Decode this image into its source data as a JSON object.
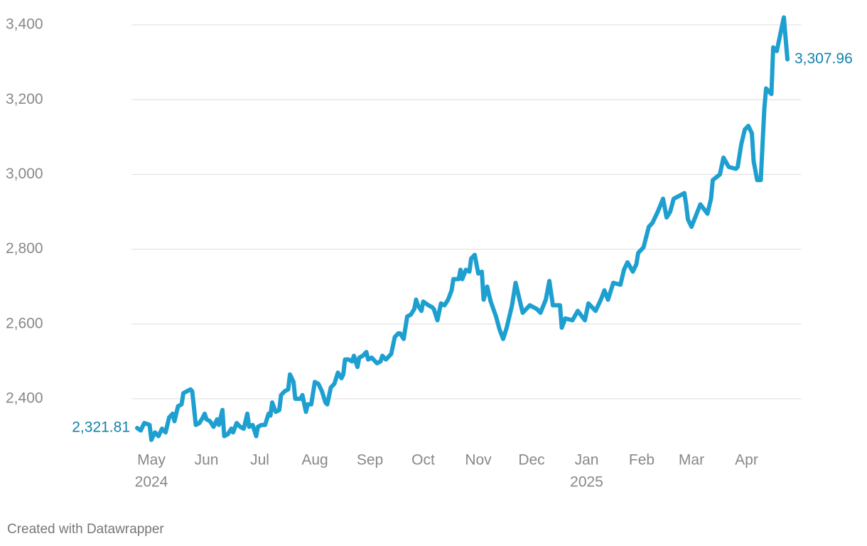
{
  "chart_data": {
    "type": "line",
    "footer": "Created with Datawrapper",
    "x": [
      -8,
      -6,
      -4,
      -2,
      -1,
      0,
      2,
      4,
      6,
      8,
      10,
      12,
      13,
      15,
      17,
      18,
      20,
      22,
      23,
      25,
      27,
      29,
      30,
      31,
      33,
      35,
      37,
      38,
      40,
      41,
      43,
      45,
      46,
      48,
      50,
      52,
      54,
      55,
      57,
      59,
      60,
      62,
      64,
      66,
      67,
      68,
      70,
      72,
      73,
      75,
      77,
      78,
      80,
      81,
      84,
      85,
      87,
      88,
      90,
      92,
      94,
      96,
      98,
      99,
      101,
      103,
      105,
      107,
      108,
      109,
      111,
      113,
      114,
      116,
      117,
      119,
      121,
      122,
      124,
      126,
      127,
      129,
      130,
      132,
      134,
      135,
      137,
      139,
      140,
      142,
      144,
      146,
      148,
      149,
      150,
      152,
      153,
      156,
      158,
      159,
      161,
      163,
      165,
      167,
      169,
      170,
      173,
      174,
      175,
      177,
      179,
      180,
      182,
      184,
      186,
      187,
      189,
      191,
      194,
      196,
      198,
      200,
      203,
      205,
      207,
      209,
      213,
      217,
      219,
      222,
      224,
      226,
      230,
      231,
      233,
      237,
      240,
      244,
      246,
      250,
      253,
      255,
      257,
      260,
      264,
      266,
      268,
      271,
      273,
      274,
      277,
      280,
      282,
      285,
      288,
      290,
      292,
      294,
      298,
      300,
      301,
      302,
      304,
      309,
      313,
      315,
      316,
      320,
      322,
      325,
      329,
      330,
      332,
      334,
      336,
      338,
      339,
      341,
      343,
      345,
      346,
      349,
      350,
      352,
      356,
      358
    ],
    "series": [
      {
        "color": "#1d9fd0",
        "label_color": "#1482a8",
        "values": [
          2321.81,
          2315,
          2335,
          2332,
          2330,
          2290,
          2310,
          2300,
          2320,
          2310,
          2350,
          2360,
          2340,
          2380,
          2385,
          2415,
          2420,
          2425,
          2420,
          2330,
          2335,
          2350,
          2360,
          2345,
          2340,
          2325,
          2345,
          2330,
          2370,
          2300,
          2305,
          2320,
          2310,
          2335,
          2325,
          2320,
          2360,
          2325,
          2330,
          2300,
          2325,
          2330,
          2330,
          2360,
          2355,
          2390,
          2365,
          2370,
          2410,
          2420,
          2425,
          2465,
          2445,
          2400,
          2400,
          2410,
          2365,
          2385,
          2385,
          2445,
          2440,
          2420,
          2390,
          2385,
          2430,
          2440,
          2470,
          2455,
          2465,
          2505,
          2505,
          2500,
          2515,
          2485,
          2510,
          2515,
          2525,
          2505,
          2510,
          2500,
          2495,
          2500,
          2515,
          2505,
          2515,
          2520,
          2565,
          2575,
          2575,
          2560,
          2620,
          2625,
          2640,
          2665,
          2650,
          2635,
          2660,
          2650,
          2645,
          2640,
          2610,
          2655,
          2650,
          2665,
          2690,
          2720,
          2720,
          2745,
          2720,
          2745,
          2740,
          2775,
          2785,
          2735,
          2740,
          2665,
          2700,
          2660,
          2620,
          2585,
          2560,
          2590,
          2650,
          2710,
          2670,
          2630,
          2650,
          2640,
          2630,
          2665,
          2715,
          2650,
          2650,
          2590,
          2615,
          2610,
          2635,
          2610,
          2655,
          2635,
          2665,
          2690,
          2665,
          2710,
          2705,
          2745,
          2765,
          2740,
          2760,
          2790,
          2805,
          2860,
          2870,
          2900,
          2935,
          2885,
          2900,
          2935,
          2945,
          2950,
          2920,
          2880,
          2860,
          2920,
          2895,
          2935,
          2985,
          3000,
          3045,
          3020,
          3015,
          3020,
          3080,
          3120,
          3130,
          3110,
          3035,
          2985,
          2985,
          3175,
          3230,
          3215,
          3340,
          3330,
          3420,
          3307.96
        ],
        "value_labels": [
          "2,321.81",
          null,
          null,
          null,
          null,
          null,
          null,
          null,
          null,
          null,
          null,
          null,
          null,
          null,
          null,
          null,
          null,
          null,
          null,
          null,
          null,
          null,
          null,
          null,
          null,
          null,
          null,
          null,
          null,
          null,
          null,
          null,
          null,
          null,
          null,
          null,
          null,
          null,
          null,
          null,
          null,
          null,
          null,
          null,
          null,
          null,
          null,
          null,
          null,
          null,
          null,
          null,
          null,
          null,
          null,
          null,
          null,
          null,
          null,
          null,
          null,
          null,
          null,
          null,
          null,
          null,
          null,
          null,
          null,
          null,
          null,
          null,
          null,
          null,
          null,
          null,
          null,
          null,
          null,
          null,
          null,
          null,
          null,
          null,
          null,
          null,
          null,
          null,
          null,
          null,
          null,
          null,
          null,
          null,
          null,
          null,
          null,
          null,
          null,
          null,
          null,
          null,
          null,
          null,
          null,
          null,
          null,
          null,
          null,
          null,
          null,
          null,
          null,
          null,
          null,
          null,
          null,
          null,
          null,
          null,
          null,
          null,
          null,
          null,
          null,
          null,
          null,
          null,
          null,
          null,
          null,
          null,
          null,
          null,
          null,
          null,
          null,
          null,
          null,
          null,
          null,
          null,
          null,
          null,
          null,
          null,
          null,
          null,
          null,
          null,
          null,
          null,
          null,
          null,
          null,
          null,
          null,
          null,
          null,
          null,
          null,
          null,
          null,
          null,
          null,
          null,
          null,
          null,
          null,
          null,
          null,
          null,
          null,
          null,
          null,
          null,
          null,
          null,
          null,
          null,
          null,
          null,
          null,
          null,
          null,
          "3,307.96"
        ]
      }
    ],
    "xlim": [
      -11,
      365
    ],
    "xticks": [
      {
        "value": 0,
        "label": "May"
      },
      {
        "value": 31,
        "label": "Jun"
      },
      {
        "value": 61,
        "label": "Jul"
      },
      {
        "value": 92,
        "label": "Aug"
      },
      {
        "value": 123,
        "label": "Sep"
      },
      {
        "value": 153,
        "label": "Oct"
      },
      {
        "value": 184,
        "label": "Nov"
      },
      {
        "value": 214,
        "label": "Dec"
      },
      {
        "value": 245,
        "label": "Jan"
      },
      {
        "value": 276,
        "label": "Feb"
      },
      {
        "value": 304,
        "label": "Mar"
      },
      {
        "value": 335,
        "label": "Apr"
      }
    ],
    "year_labels": [
      {
        "value": 0,
        "label": "2024"
      },
      {
        "value": 245,
        "label": "2025"
      }
    ],
    "ylim": [
      2280,
      3440
    ],
    "yticks": [
      {
        "value": 2400,
        "label": "2,400"
      },
      {
        "value": 2600,
        "label": "2,600"
      },
      {
        "value": 2800,
        "label": "2,800"
      },
      {
        "value": 3000,
        "label": "3,000"
      },
      {
        "value": 3200,
        "label": "3,200"
      },
      {
        "value": 3400,
        "label": "3,400"
      }
    ],
    "grid": true
  }
}
